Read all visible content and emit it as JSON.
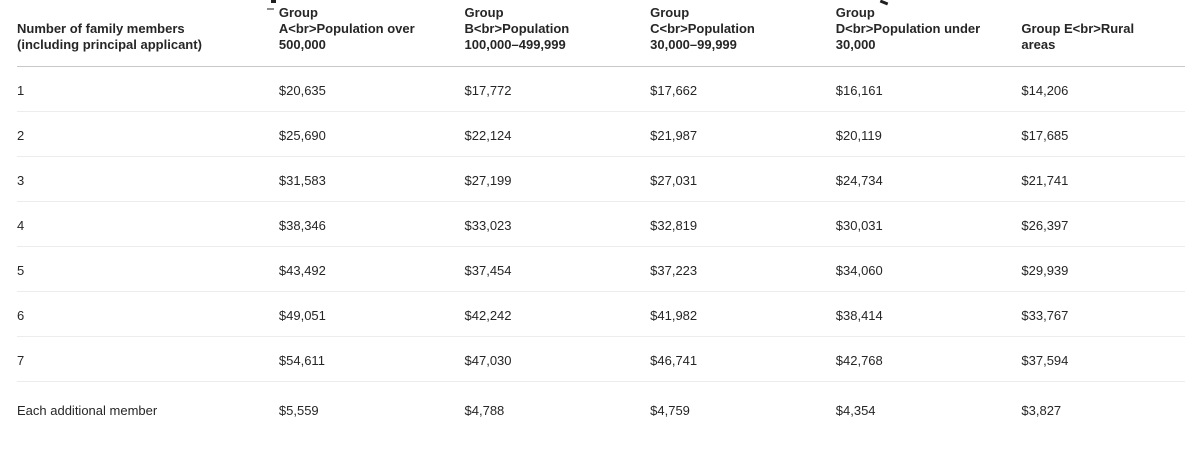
{
  "page": {
    "background_color": "#ffffff",
    "text_color": "#262626",
    "header_border_color": "#c8c8c8",
    "row_border_color": "#ececec"
  },
  "table": {
    "columns": [
      {
        "id": "members",
        "label": "Number of family members (including principal applicant)",
        "label_lines": [
          "Number of family members",
          "(including principal applicant)"
        ]
      },
      {
        "id": "group-a",
        "label": "Group A<br>Population over 500,000",
        "label_lines": [
          "Group",
          "A<br>Population over",
          "500,000"
        ]
      },
      {
        "id": "group-b",
        "label": "Group B<br>Population 100,000–499,999",
        "label_lines": [
          "Group",
          "B<br>Population",
          "100,000–499,999"
        ]
      },
      {
        "id": "group-c",
        "label": "Group C<br>Population 30,000–99,999",
        "label_lines": [
          "Group",
          "C<br>Population",
          "30,000–99,999"
        ]
      },
      {
        "id": "group-d",
        "label": "Group D<br>Population under 30,000",
        "label_lines": [
          "Group",
          "D<br>Population under",
          "30,000"
        ]
      },
      {
        "id": "group-e",
        "label": "Group E<br>Rural areas",
        "label_lines": [
          "Group E<br>Rural",
          "areas"
        ]
      }
    ],
    "rows": [
      {
        "label": "1",
        "values": [
          "$20,635",
          "$17,772",
          "$17,662",
          "$16,161",
          "$14,206"
        ]
      },
      {
        "label": "2",
        "values": [
          "$25,690",
          "$22,124",
          "$21,987",
          "$20,119",
          "$17,685"
        ]
      },
      {
        "label": "3",
        "values": [
          "$31,583",
          "$27,199",
          "$27,031",
          "$24,734",
          "$21,741"
        ]
      },
      {
        "label": "4",
        "values": [
          "$38,346",
          "$33,023",
          "$32,819",
          "$30,031",
          "$26,397"
        ]
      },
      {
        "label": "5",
        "values": [
          "$43,492",
          "$37,454",
          "$37,223",
          "$34,060",
          "$29,939"
        ]
      },
      {
        "label": "6",
        "values": [
          "$49,051",
          "$42,242",
          "$41,982",
          "$38,414",
          "$33,767"
        ]
      },
      {
        "label": "7",
        "values": [
          "$54,611",
          "$47,030",
          "$46,741",
          "$42,768",
          "$37,594"
        ]
      },
      {
        "label": "Each additional member",
        "values": [
          "$5,559",
          "$4,788",
          "$4,759",
          "$4,354",
          "$3,827"
        ]
      }
    ]
  }
}
